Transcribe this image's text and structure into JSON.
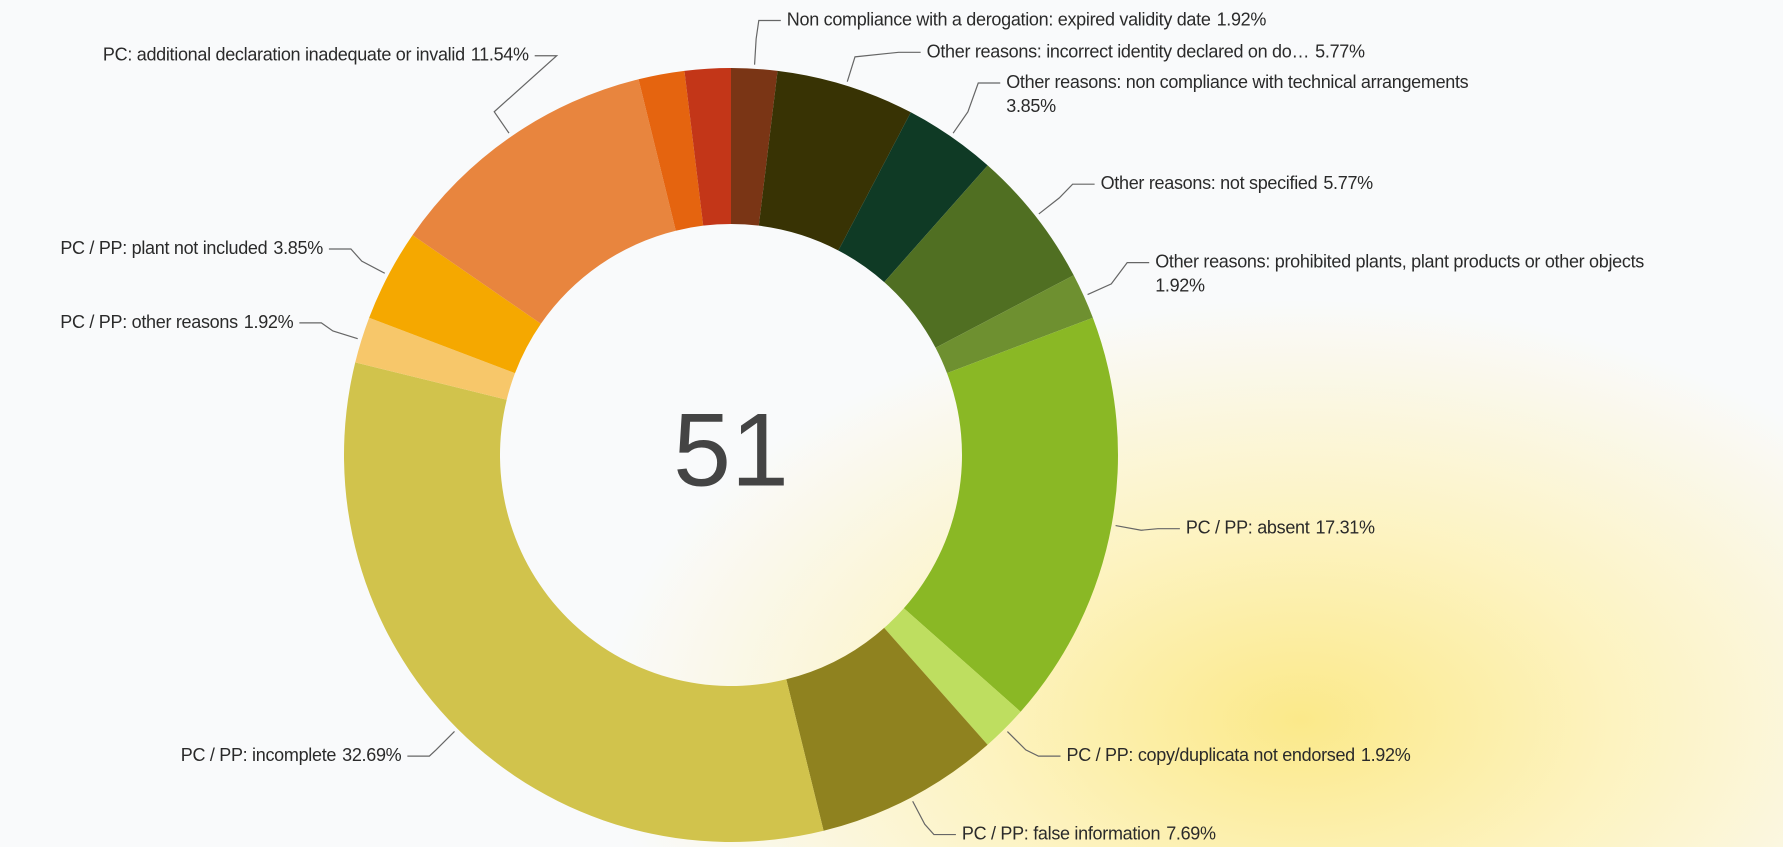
{
  "chart_data": {
    "type": "donut",
    "total": 51,
    "categories": [
      "Non compliance with a derogation: expired validity date",
      "Other reasons: incorrect identity declared on do…",
      "Other reasons: non compliance with technical arrangements",
      "Other reasons: not specified",
      "Other reasons: prohibited plants, plant products or other objects",
      "PC / PP: absent",
      "PC / PP: copy/duplicata not endorsed",
      "PC / PP: false information",
      "PC / PP: incomplete",
      "PC / PP: other reasons",
      "PC / PP: plant not included",
      "PC: additional declaration inadequate or invalid",
      null,
      null
    ],
    "values": [
      1.92,
      5.77,
      3.85,
      5.77,
      1.92,
      17.31,
      1.92,
      7.69,
      32.69,
      1.92,
      3.85,
      11.54,
      1.92,
      1.92
    ],
    "value_labels": [
      "1.92%",
      "5.77%",
      "3.85%",
      "5.77%",
      "1.92%",
      "17.31%",
      "1.92%",
      "7.69%",
      "32.69%",
      "1.92%",
      "3.85%",
      "11.54%",
      null,
      null
    ],
    "colors": [
      "#7a3515",
      "#383304",
      "#0f3a25",
      "#506f22",
      "#6e9030",
      "#8ab825",
      "#bede60",
      "#8f821f",
      "#d1c34c",
      "#f7c76a",
      "#f5a800",
      "#e8853e",
      "#e5640f",
      "#c33618"
    ]
  }
}
